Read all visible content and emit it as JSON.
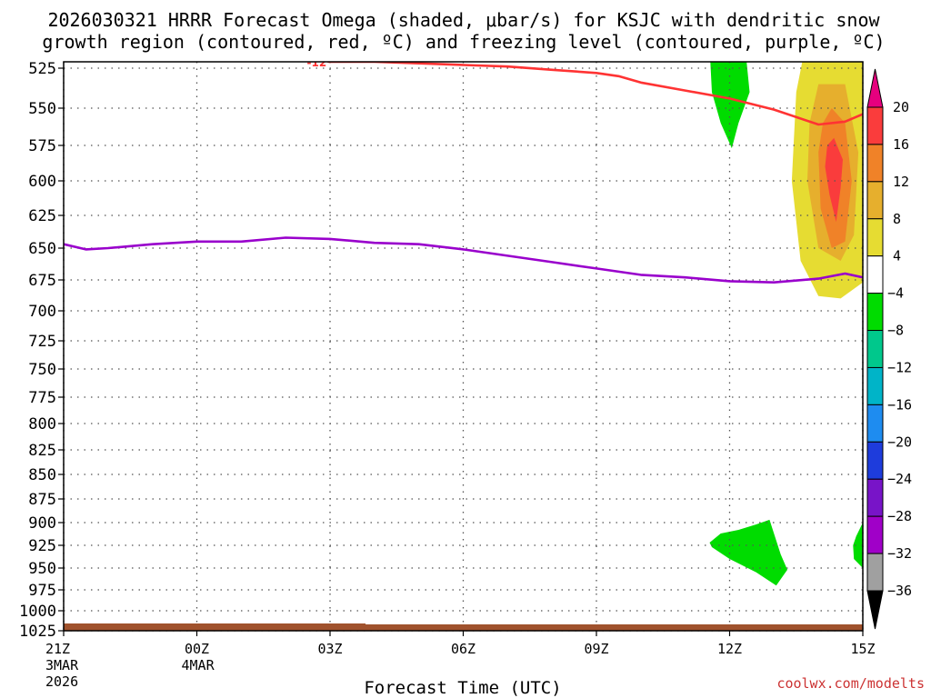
{
  "title": {
    "line1": "2026030321 HRRR Forecast Omega (shaded, μbar/s) for KSJC with dendritic snow",
    "line2": "growth region (contoured, red, ºC) and freezing level (contoured, purple, ºC)"
  },
  "xlabel": "Forecast Time (UTC)",
  "credit": "coolwx.com/modelts",
  "chart_data": {
    "type": "contour",
    "title": "2026030321 HRRR Forecast Omega (shaded, μbar/s) for KSJC with dendritic snow growth region (contoured, red, ºC) and freezing level (contoured, purple, ºC)",
    "xlabel": "Forecast Time (UTC)",
    "ylabel": "",
    "x_unit": "forecast hour from 21Z 3 MAR 2026",
    "xlim": [
      0,
      18
    ],
    "ylim": [
      1025,
      515
    ],
    "y_scale": "pressure (hPa), increasing downward",
    "grid": true,
    "x_ticks": [
      {
        "x": 0,
        "label": "21Z",
        "sub1": "3MAR",
        "sub2": "2026"
      },
      {
        "x": 3,
        "label": "00Z",
        "sub1": "4MAR",
        "sub2": ""
      },
      {
        "x": 6,
        "label": "03Z",
        "sub1": "",
        "sub2": ""
      },
      {
        "x": 9,
        "label": "06Z",
        "sub1": "",
        "sub2": ""
      },
      {
        "x": 12,
        "label": "09Z",
        "sub1": "",
        "sub2": ""
      },
      {
        "x": 15,
        "label": "12Z",
        "sub1": "",
        "sub2": ""
      },
      {
        "x": 18,
        "label": "15Z",
        "sub1": "",
        "sub2": ""
      }
    ],
    "y_ticks": [
      525,
      550,
      575,
      600,
      625,
      650,
      675,
      700,
      725,
      750,
      775,
      800,
      825,
      850,
      875,
      900,
      925,
      950,
      975,
      1000,
      1025
    ],
    "series": [
      {
        "name": "-12",
        "color": "#ff3333",
        "kind": "contour",
        "points": [
          [
            3.0,
            516
          ],
          [
            4.0,
            518
          ],
          [
            5.0,
            520
          ],
          [
            6.0,
            521
          ],
          [
            7.0,
            521
          ],
          [
            8.0,
            522
          ],
          [
            9.0,
            523
          ],
          [
            10.0,
            524
          ],
          [
            11.0,
            526
          ],
          [
            12.0,
            528
          ],
          [
            12.5,
            530
          ],
          [
            13.0,
            534
          ],
          [
            14.0,
            539
          ],
          [
            15.0,
            544
          ],
          [
            16.0,
            551
          ],
          [
            17.0,
            561
          ],
          [
            17.6,
            559
          ],
          [
            18.0,
            554
          ]
        ]
      },
      {
        "name": "freezing level",
        "color": "#9900cc",
        "kind": "contour",
        "points": [
          [
            0,
            647
          ],
          [
            0.5,
            651
          ],
          [
            1.0,
            650
          ],
          [
            2.0,
            647
          ],
          [
            3.0,
            645
          ],
          [
            4.0,
            645
          ],
          [
            5.0,
            642
          ],
          [
            6.0,
            643
          ],
          [
            7.0,
            646
          ],
          [
            8.0,
            647
          ],
          [
            9.0,
            651
          ],
          [
            10.0,
            656
          ],
          [
            11.0,
            661
          ],
          [
            12.0,
            666
          ],
          [
            13.0,
            671
          ],
          [
            14.0,
            673
          ],
          [
            15.0,
            676
          ],
          [
            16.0,
            677
          ],
          [
            17.0,
            674
          ],
          [
            17.6,
            670
          ],
          [
            18.0,
            673
          ]
        ]
      }
    ],
    "shaded_regions": [
      {
        "level": 4,
        "color": "#e6dc32",
        "points": [
          [
            16.7,
            512
          ],
          [
            18.0,
            512
          ],
          [
            18.0,
            677
          ],
          [
            17.5,
            690
          ],
          [
            17.0,
            688
          ],
          [
            16.6,
            660
          ],
          [
            16.4,
            600
          ],
          [
            16.5,
            540
          ]
        ]
      },
      {
        "level": 8,
        "color": "#e6af2d",
        "points": [
          [
            17.0,
            535
          ],
          [
            17.6,
            535
          ],
          [
            17.9,
            580
          ],
          [
            17.8,
            640
          ],
          [
            17.5,
            660
          ],
          [
            17.0,
            650
          ],
          [
            16.75,
            600
          ],
          [
            16.8,
            560
          ]
        ]
      },
      {
        "level": 12,
        "color": "#f08228",
        "points": [
          [
            17.3,
            550
          ],
          [
            17.6,
            560
          ],
          [
            17.75,
            600
          ],
          [
            17.6,
            645
          ],
          [
            17.3,
            650
          ],
          [
            17.05,
            620
          ],
          [
            17.0,
            580
          ],
          [
            17.1,
            560
          ]
        ]
      },
      {
        "level": 16,
        "color": "#fa3c3c",
        "points": [
          [
            17.35,
            570
          ],
          [
            17.55,
            585
          ],
          [
            17.5,
            605
          ],
          [
            17.4,
            630
          ],
          [
            17.25,
            610
          ],
          [
            17.15,
            590
          ],
          [
            17.2,
            575
          ]
        ]
      },
      {
        "level": -4,
        "color": "#00dc00",
        "points": [
          [
            14.55,
            512
          ],
          [
            15.35,
            512
          ],
          [
            15.45,
            540
          ],
          [
            15.2,
            560
          ],
          [
            15.05,
            577
          ],
          [
            14.8,
            560
          ],
          [
            14.6,
            540
          ]
        ]
      },
      {
        "level": -4,
        "color": "#00dc00",
        "points": [
          [
            14.55,
            922
          ],
          [
            14.8,
            912
          ],
          [
            15.2,
            908
          ],
          [
            15.6,
            902
          ],
          [
            15.9,
            897
          ],
          [
            16.15,
            935
          ],
          [
            16.3,
            952
          ],
          [
            16.05,
            970
          ],
          [
            15.6,
            955
          ],
          [
            15.0,
            940
          ],
          [
            14.6,
            927
          ]
        ]
      },
      {
        "level": -4,
        "color": "#00dc00",
        "points": [
          [
            18.0,
            900
          ],
          [
            18.0,
            950
          ],
          [
            17.8,
            940
          ],
          [
            17.78,
            925
          ],
          [
            17.85,
            915
          ]
        ]
      }
    ],
    "terrain": {
      "label": "surface",
      "color": "#a0522d"
    },
    "colorbar": {
      "levels": [
        20,
        16,
        12,
        8,
        4,
        -4,
        -8,
        -12,
        -16,
        -20,
        -24,
        -28,
        -32,
        -36
      ],
      "bins": [
        {
          "range": "20 and above",
          "color": "#e6007e"
        },
        {
          "range": "16 to 20",
          "color": "#fa3c3c"
        },
        {
          "range": "12 to 16",
          "color": "#f08228"
        },
        {
          "range": "8 to 12",
          "color": "#e6af2d"
        },
        {
          "range": "4 to 8",
          "color": "#e6dc32"
        },
        {
          "range": "-4 to 4",
          "color": "#ffffff"
        },
        {
          "range": "-8 to -4",
          "color": "#00dc00"
        },
        {
          "range": "-12 to -8",
          "color": "#00c88c"
        },
        {
          "range": "-16 to -12",
          "color": "#00b4c8"
        },
        {
          "range": "-20 to -16",
          "color": "#1e8cf0"
        },
        {
          "range": "-24 to -20",
          "color": "#1e3cdc"
        },
        {
          "range": "-28 to -24",
          "color": "#7814c8"
        },
        {
          "range": "-32 to -28",
          "color": "#a000c8"
        },
        {
          "range": "-36 to -32",
          "color": "#a0a0a0"
        },
        {
          "range": "below -36",
          "color": "#000000"
        }
      ]
    }
  }
}
